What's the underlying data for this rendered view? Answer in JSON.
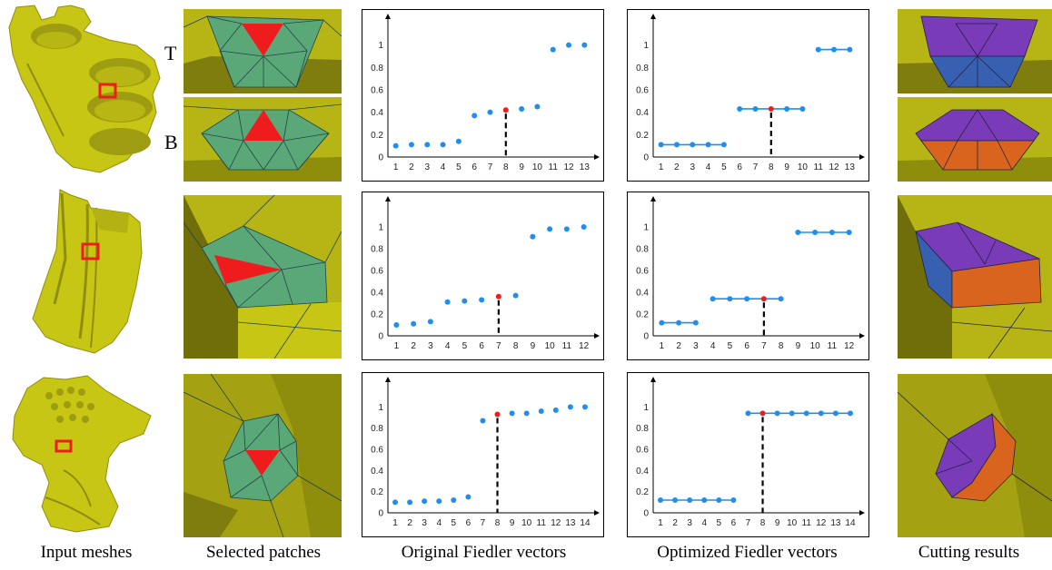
{
  "row_labels": [
    "T",
    "B"
  ],
  "captions": [
    "Input meshes",
    "Selected patches",
    "Original Fiedler vectors",
    "Optimized Fiedler vectors",
    "Cutting results"
  ],
  "colors": {
    "mesh": "#c8c615",
    "mesh_dark": "#8f8e0c",
    "patch": "#5aa878",
    "highlight_triangle": "#ee1c1c",
    "point": "#1e8ff0",
    "selected_point": "#ee1c1c",
    "cut_purple": "#7a3bb8",
    "cut_blue": "#3860b0",
    "cut_orange": "#d8641e",
    "selection_box": "#ee1c1c"
  },
  "icons": [
    "bracket-mesh",
    "bearing-mesh",
    "gargoyle-mesh"
  ],
  "chart_data": [
    {
      "type": "scatter",
      "title": "",
      "categories": [
        "1",
        "2",
        "3",
        "4",
        "5",
        "6",
        "7",
        "8",
        "9",
        "10",
        "11",
        "12",
        "13"
      ],
      "values": [
        0.1,
        0.11,
        0.11,
        0.11,
        0.14,
        0.37,
        0.4,
        0.42,
        0.43,
        0.45,
        0.96,
        1.0,
        1.0
      ],
      "highlight_index": 8,
      "ylim": [
        0,
        1.2
      ],
      "yticks": [
        "0",
        "0.2",
        "0.4",
        "0.6",
        "0.8",
        "1"
      ],
      "step": false
    },
    {
      "type": "line",
      "title": "",
      "categories": [
        "1",
        "2",
        "3",
        "4",
        "5",
        "6",
        "7",
        "8",
        "9",
        "10",
        "11",
        "12",
        "13"
      ],
      "values": [
        0.11,
        0.11,
        0.11,
        0.11,
        0.11,
        0.43,
        0.43,
        0.43,
        0.43,
        0.43,
        0.96,
        0.96,
        0.96
      ],
      "highlight_index": 8,
      "ylim": [
        0,
        1.2
      ],
      "yticks": [
        "0",
        "0.2",
        "0.4",
        "0.6",
        "0.8",
        "1"
      ],
      "step": true
    },
    {
      "type": "scatter",
      "title": "",
      "categories": [
        "1",
        "2",
        "3",
        "4",
        "5",
        "6",
        "7",
        "8",
        "9",
        "10",
        "11",
        "12"
      ],
      "values": [
        0.1,
        0.11,
        0.13,
        0.31,
        0.32,
        0.33,
        0.36,
        0.37,
        0.91,
        0.98,
        0.98,
        1.0
      ],
      "highlight_index": 7,
      "ylim": [
        0,
        1.2
      ],
      "yticks": [
        "0",
        "0.2",
        "0.4",
        "0.6",
        "0.8",
        "1"
      ],
      "step": false
    },
    {
      "type": "line",
      "title": "",
      "categories": [
        "1",
        "2",
        "3",
        "4",
        "5",
        "6",
        "7",
        "8",
        "9",
        "10",
        "11",
        "12"
      ],
      "values": [
        0.12,
        0.12,
        0.12,
        0.34,
        0.34,
        0.34,
        0.34,
        0.34,
        0.95,
        0.95,
        0.95,
        0.95
      ],
      "highlight_index": 7,
      "ylim": [
        0,
        1.2
      ],
      "yticks": [
        "0",
        "0.2",
        "0.4",
        "0.6",
        "0.8",
        "1"
      ],
      "step": true
    },
    {
      "type": "scatter",
      "title": "",
      "categories": [
        "1",
        "2",
        "3",
        "4",
        "5",
        "6",
        "7",
        "8",
        "9",
        "10",
        "11",
        "12",
        "13",
        "14"
      ],
      "values": [
        0.1,
        0.1,
        0.11,
        0.11,
        0.12,
        0.15,
        0.87,
        0.93,
        0.94,
        0.94,
        0.96,
        0.97,
        1.0,
        1.0
      ],
      "highlight_index": 8,
      "ylim": [
        0,
        1.2
      ],
      "yticks": [
        "0",
        "0.2",
        "0.4",
        "0.6",
        "0.8",
        "1"
      ],
      "step": false
    },
    {
      "type": "line",
      "title": "",
      "categories": [
        "1",
        "2",
        "3",
        "4",
        "5",
        "6",
        "7",
        "8",
        "9",
        "10",
        "11",
        "12",
        "13",
        "14"
      ],
      "values": [
        0.12,
        0.12,
        0.12,
        0.12,
        0.12,
        0.12,
        0.94,
        0.94,
        0.94,
        0.94,
        0.94,
        0.94,
        0.94,
        0.94
      ],
      "highlight_index": 8,
      "ylim": [
        0,
        1.2
      ],
      "yticks": [
        "0",
        "0.2",
        "0.4",
        "0.6",
        "0.8",
        "1"
      ],
      "step": true
    }
  ]
}
